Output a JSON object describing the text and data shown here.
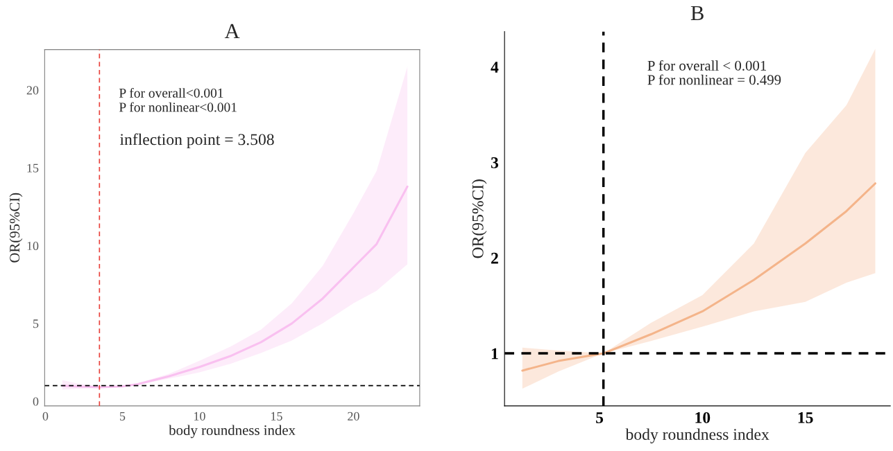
{
  "chart_data": [
    {
      "type": "line",
      "title": "A",
      "xlabel": "body roundness index",
      "ylabel": "OR(95%CI)",
      "x": [
        1.1,
        2,
        3.5,
        5,
        6,
        8,
        10,
        12,
        14,
        16,
        18,
        20,
        21.5,
        23.5
      ],
      "series": [
        {
          "color": "#f9c0f0",
          "values": [
            1.0,
            0.95,
            0.9,
            0.95,
            1.1,
            1.6,
            2.2,
            2.9,
            3.8,
            5.0,
            6.6,
            8.6,
            10.1,
            13.8
          ],
          "lower": [
            0.75,
            0.8,
            0.85,
            0.92,
            1.05,
            1.45,
            1.85,
            2.4,
            3.1,
            3.9,
            5.0,
            6.3,
            7.1,
            8.8
          ],
          "upper": [
            1.35,
            1.15,
            0.95,
            1.0,
            1.15,
            1.75,
            2.6,
            3.5,
            4.6,
            6.3,
            8.7,
            12.1,
            14.8,
            21.5
          ]
        }
      ],
      "xlim": [
        -0.05,
        24.3
      ],
      "ylim": [
        -0.3,
        22.6
      ],
      "xticks": [
        0,
        5,
        10,
        15,
        20
      ],
      "yticks": [
        0,
        5,
        10,
        15,
        20
      ],
      "ref_lines": [
        {
          "axis": "x",
          "value": 3.508,
          "color": "#e8403a",
          "line_style": "dashed"
        },
        {
          "axis": "y",
          "value": 1,
          "color": "#000000",
          "line_style": "dashed"
        }
      ],
      "annotations": [
        "P for overall<0.001",
        "P for nonlinear<0.001",
        "inflection point = 3.508"
      ],
      "grid": false,
      "legend": false,
      "marker": "none",
      "line_style": "solid"
    },
    {
      "type": "line",
      "title": "B",
      "xlabel": "body roundness index",
      "ylabel": "OR(95%CI)",
      "x": [
        1.25,
        3,
        5.19,
        7.5,
        10,
        12.5,
        15,
        17,
        18.4
      ],
      "series": [
        {
          "color": "#f4b48a",
          "values": [
            0.82,
            0.92,
            1.0,
            1.2,
            1.44,
            1.77,
            2.15,
            2.49,
            2.78
          ],
          "lower": [
            0.63,
            0.81,
            1.0,
            1.13,
            1.28,
            1.44,
            1.54,
            1.74,
            1.84
          ],
          "upper": [
            1.06,
            1.03,
            1.0,
            1.32,
            1.61,
            2.15,
            3.1,
            3.6,
            4.19
          ]
        }
      ],
      "xlim": [
        0.385,
        19.13
      ],
      "ylim": [
        0.45,
        4.37
      ],
      "xticks": [
        5,
        10,
        15
      ],
      "yticks": [
        1,
        2,
        3,
        4
      ],
      "ref_lines": [
        {
          "axis": "x",
          "value": 5.19,
          "color": "#000000",
          "line_style": "dashed"
        },
        {
          "axis": "y",
          "value": 1,
          "color": "#000000",
          "line_style": "dashed"
        }
      ],
      "annotations": [
        "P for overall < 0.001",
        "P for nonlinear = 0.499"
      ],
      "grid": false,
      "legend": false,
      "marker": "none",
      "line_style": "solid"
    }
  ]
}
